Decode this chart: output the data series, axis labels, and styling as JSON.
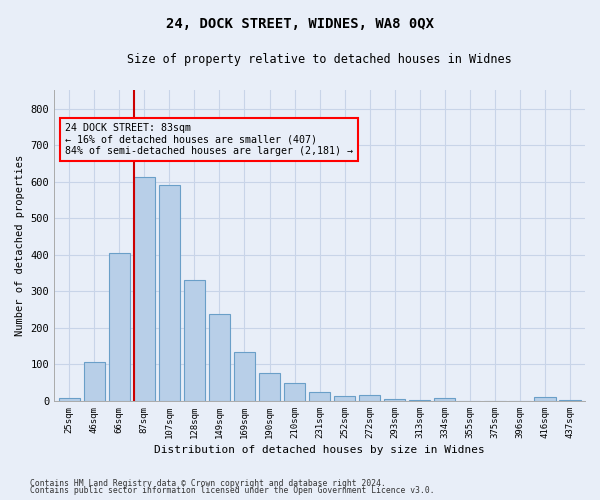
{
  "title1": "24, DOCK STREET, WIDNES, WA8 0QX",
  "title2": "Size of property relative to detached houses in Widnes",
  "xlabel": "Distribution of detached houses by size in Widnes",
  "ylabel": "Number of detached properties",
  "categories": [
    "25sqm",
    "46sqm",
    "66sqm",
    "87sqm",
    "107sqm",
    "128sqm",
    "149sqm",
    "169sqm",
    "190sqm",
    "210sqm",
    "231sqm",
    "252sqm",
    "272sqm",
    "293sqm",
    "313sqm",
    "334sqm",
    "355sqm",
    "375sqm",
    "396sqm",
    "416sqm",
    "437sqm"
  ],
  "values": [
    8,
    107,
    405,
    613,
    592,
    330,
    237,
    133,
    77,
    50,
    25,
    13,
    17,
    5,
    2,
    8,
    0,
    0,
    0,
    10,
    2
  ],
  "bar_color": "#b8cfe8",
  "bar_edge_color": "#6a9fc8",
  "grid_color": "#c8d4e8",
  "vline_color": "#cc0000",
  "annotation_line1": "24 DOCK STREET: 83sqm",
  "annotation_line2": "← 16% of detached houses are smaller (407)",
  "annotation_line3": "84% of semi-detached houses are larger (2,181) →",
  "ylim": [
    0,
    850
  ],
  "yticks": [
    0,
    100,
    200,
    300,
    400,
    500,
    600,
    700,
    800
  ],
  "footnote1": "Contains HM Land Registry data © Crown copyright and database right 2024.",
  "footnote2": "Contains public sector information licensed under the Open Government Licence v3.0.",
  "bg_color": "#e8eef8"
}
